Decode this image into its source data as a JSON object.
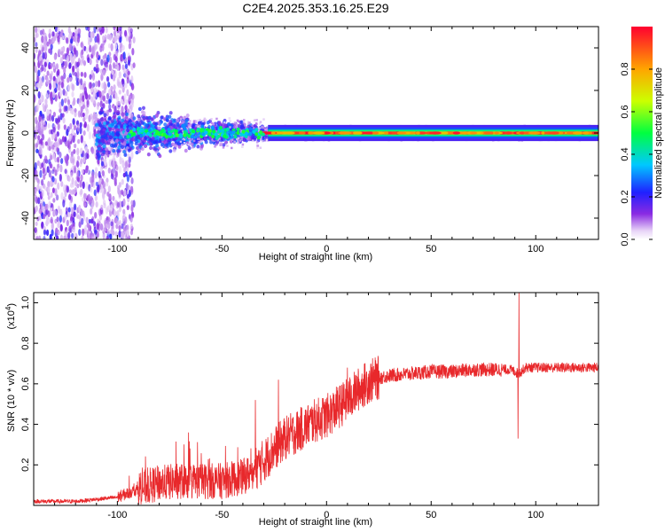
{
  "title": "C2E4.2025.353.16.25.E29",
  "chart_data": [
    {
      "type": "heatmap",
      "name": "spectrogram",
      "xlabel": "Height of straight line (km)",
      "ylabel": "Frequency (Hz)",
      "xlim": [
        -140,
        130
      ],
      "ylim": [
        -50,
        50
      ],
      "xticks": [
        -100,
        -50,
        0,
        50,
        100
      ],
      "yticks": [
        -40,
        -20,
        0,
        20,
        40
      ],
      "colorbar": {
        "label": "Normalized spectral amplitude",
        "range": [
          0,
          1
        ],
        "ticks": [
          0.0,
          0.2,
          0.4,
          0.6,
          0.8
        ],
        "tick_labels": [
          "0.0",
          "0.2",
          "0.4",
          "0.6",
          "0.8"
        ]
      },
      "description_regions": [
        {
          "x": [
            -140,
            -92
          ],
          "freq_spread": 50,
          "amplitude": 0.1
        },
        {
          "x": [
            -92,
            -30
          ],
          "freq_spread": 10,
          "amplitude": 0.35
        },
        {
          "x": [
            -30,
            130
          ],
          "freq_spread": 3,
          "amplitude": 0.7
        }
      ]
    },
    {
      "type": "line",
      "name": "snr",
      "xlabel": "Height of straight line (km)",
      "ylabel": "SNR (10 * v/v)",
      "multiplier_label": "(x10",
      "multiplier_exp": "4",
      "xlim": [
        -140,
        130
      ],
      "ylim": [
        0,
        1.05
      ],
      "xticks": [
        -100,
        -50,
        0,
        50,
        100
      ],
      "yticks": [
        0.2,
        0.4,
        0.6,
        0.8,
        1.0
      ],
      "color": "#e8282b",
      "x": [
        -140,
        -120,
        -100,
        -90,
        -80,
        -70,
        -60,
        -50,
        -40,
        -35,
        -30,
        -25,
        -20,
        -15,
        -10,
        -5,
        0,
        5,
        10,
        15,
        20,
        25,
        30,
        40,
        50,
        60,
        70,
        80,
        88,
        92,
        95,
        100,
        110,
        120,
        130
      ],
      "values": [
        0.02,
        0.02,
        0.04,
        0.08,
        0.11,
        0.12,
        0.12,
        0.12,
        0.14,
        0.17,
        0.22,
        0.28,
        0.33,
        0.36,
        0.39,
        0.42,
        0.44,
        0.48,
        0.52,
        0.57,
        0.61,
        0.63,
        0.64,
        0.65,
        0.66,
        0.66,
        0.67,
        0.67,
        0.67,
        0.65,
        0.68,
        0.68,
        0.68,
        0.68,
        0.68
      ],
      "spikes": [
        {
          "x": -66,
          "y": 0.36
        },
        {
          "x": -34,
          "y": 0.52
        },
        {
          "x": -23,
          "y": 0.62
        },
        {
          "x": 10,
          "y": 0.68
        },
        {
          "x": 92,
          "y": 1.05
        },
        {
          "x": 91.5,
          "y": 0.33
        }
      ]
    }
  ]
}
